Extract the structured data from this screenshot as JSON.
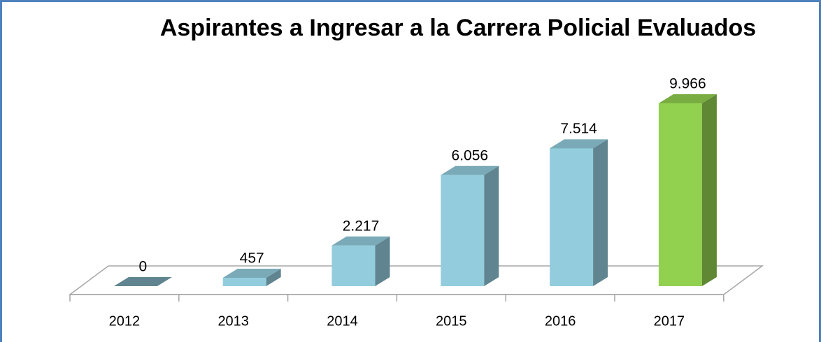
{
  "chart_data": {
    "type": "bar3d",
    "title": "Aspirantes a Ingresar a la Carrera Policial Evaluados",
    "categories": [
      "2012",
      "2013",
      "2014",
      "2015",
      "2016",
      "2017"
    ],
    "values": [
      0,
      457,
      2217,
      6056,
      7514,
      9966
    ],
    "value_labels": [
      "0",
      "457",
      "2.217",
      "6.056",
      "7.514",
      "9.966"
    ],
    "colors": [
      "#93cddd",
      "#93cddd",
      "#93cddd",
      "#93cddd",
      "#93cddd",
      "#92d050"
    ]
  }
}
